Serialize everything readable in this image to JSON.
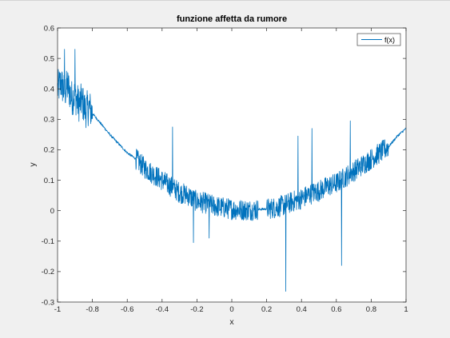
{
  "chart_data": {
    "type": "line",
    "title": "funzione affetta da rumore",
    "xlabel": "x",
    "ylabel": "y",
    "xlim": [
      -1,
      1
    ],
    "ylim": [
      -0.3,
      0.6
    ],
    "xticks": [
      "-1",
      "-0.8",
      "-0.6",
      "-0.4",
      "-0.2",
      "0",
      "0.2",
      "0.4",
      "0.6",
      "0.8",
      "1"
    ],
    "yticks": [
      "-0.3",
      "-0.2",
      "-0.1",
      "0",
      "0.1",
      "0.2",
      "0.3",
      "0.4",
      "0.5",
      "0.6"
    ],
    "grid": false,
    "legend_position": "top-right",
    "series": [
      {
        "name": "f(x)",
        "color": "#0072BD",
        "underlying_function": "0.27*x^2 + noise",
        "x": [
          -1.0,
          -0.98,
          -0.96,
          -0.94,
          -0.92,
          -0.9,
          -0.88,
          -0.86,
          -0.84,
          -0.82,
          -0.8,
          -0.7,
          -0.6,
          -0.55,
          -0.5,
          -0.45,
          -0.4,
          -0.35,
          -0.3,
          -0.25,
          -0.2,
          -0.15,
          -0.1,
          -0.05,
          0.0,
          0.05,
          0.1,
          0.15,
          0.2,
          0.25,
          0.3,
          0.35,
          0.4,
          0.45,
          0.5,
          0.55,
          0.6,
          0.65,
          0.7,
          0.75,
          0.8,
          0.85,
          0.9,
          0.95,
          1.0
        ],
        "y": [
          0.4,
          0.42,
          0.39,
          0.41,
          0.37,
          0.38,
          0.35,
          0.36,
          0.33,
          0.34,
          0.32,
          0.25,
          0.19,
          0.17,
          0.14,
          0.12,
          0.1,
          0.08,
          0.06,
          0.05,
          0.03,
          0.025,
          0.015,
          0.01,
          0.005,
          0.003,
          0.002,
          0.004,
          0.006,
          0.01,
          0.018,
          0.03,
          0.04,
          0.055,
          0.065,
          0.08,
          0.09,
          0.11,
          0.13,
          0.15,
          0.17,
          0.19,
          0.21,
          0.245,
          0.27
        ],
        "noisy_regions": [
          {
            "x_range": [
              -1.0,
              -0.8
            ],
            "amplitude": 0.06
          },
          {
            "x_range": [
              -0.55,
              0.15
            ],
            "amplitude": 0.035
          },
          {
            "x_range": [
              0.2,
              0.9
            ],
            "amplitude": 0.035
          }
        ],
        "spikes": [
          {
            "x": -0.96,
            "y": 0.53
          },
          {
            "x": -0.9,
            "y": 0.53
          },
          {
            "x": -0.34,
            "y": 0.275
          },
          {
            "x": -0.22,
            "y": -0.105
          },
          {
            "x": -0.13,
            "y": -0.09
          },
          {
            "x": 0.31,
            "y": -0.265
          },
          {
            "x": 0.38,
            "y": 0.245
          },
          {
            "x": 0.46,
            "y": 0.27
          },
          {
            "x": 0.63,
            "y": -0.18
          },
          {
            "x": 0.68,
            "y": 0.295
          }
        ]
      }
    ]
  }
}
